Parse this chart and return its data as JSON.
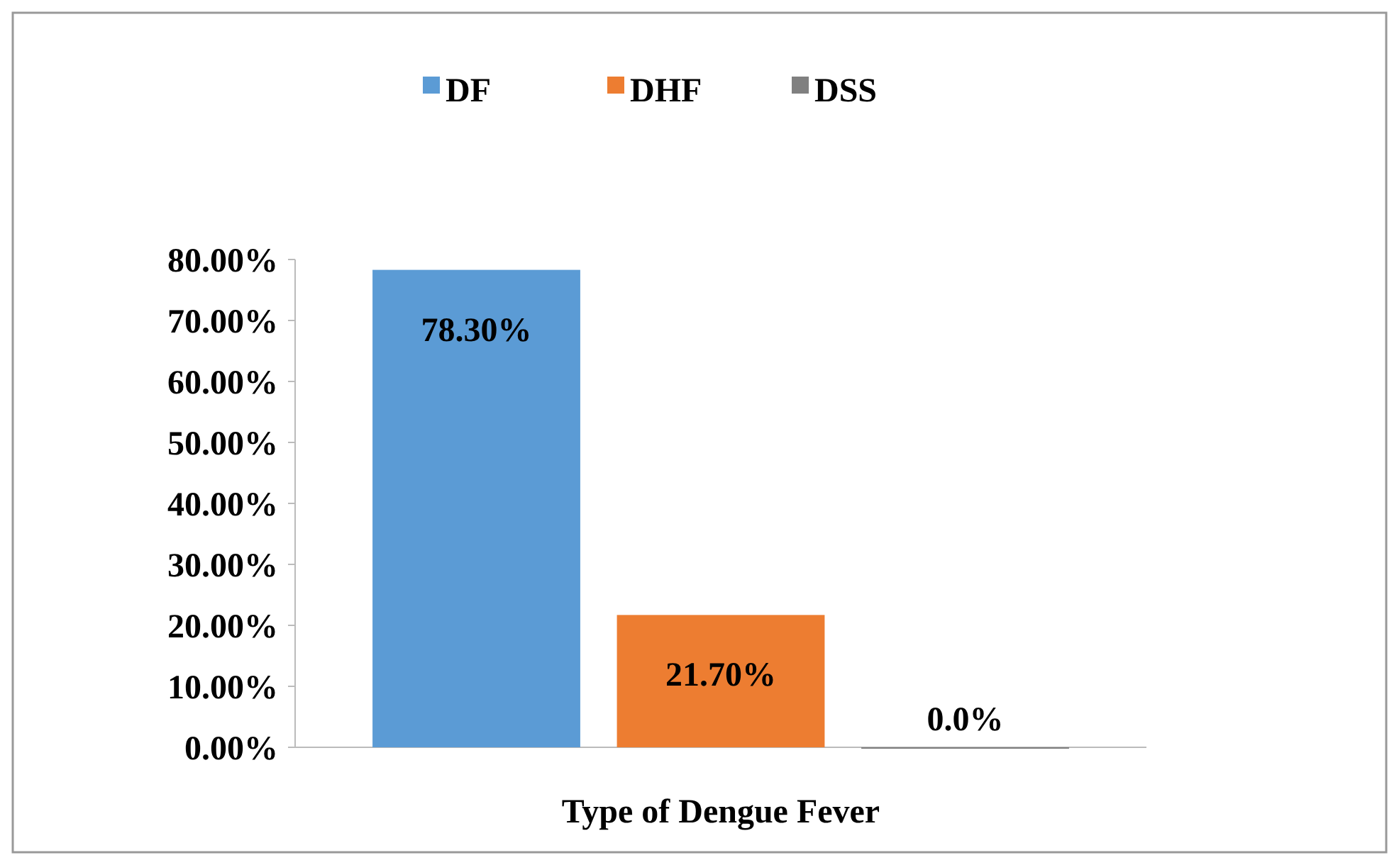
{
  "chart_data": {
    "type": "bar",
    "xlabel": "Type of Dengue Fever",
    "categories": [
      null
    ],
    "series": [
      {
        "name": "DF",
        "color": "#5b9bd5",
        "values": [
          78.3
        ],
        "value_labels": [
          "78.30%"
        ]
      },
      {
        "name": "DHF",
        "color": "#ed7d31",
        "values": [
          21.7
        ],
        "value_labels": [
          "21.70%"
        ]
      },
      {
        "name": "DSS",
        "color": "#808080",
        "values": [
          0
        ],
        "value_labels": [
          "0.0%"
        ]
      }
    ],
    "ylim": [
      0,
      80
    ],
    "yticks": [
      {
        "value": 0,
        "label": "0.00%"
      },
      {
        "value": 10,
        "label": "10.00%"
      },
      {
        "value": 20,
        "label": "20.00%"
      },
      {
        "value": 30,
        "label": "30.00%"
      },
      {
        "value": 40,
        "label": "40.00%"
      },
      {
        "value": 50,
        "label": "50.00%"
      },
      {
        "value": 60,
        "label": "60.00%"
      },
      {
        "value": 70,
        "label": "70.00%"
      },
      {
        "value": 80,
        "label": "80.00%"
      }
    ],
    "legend": "top",
    "grid": false
  }
}
